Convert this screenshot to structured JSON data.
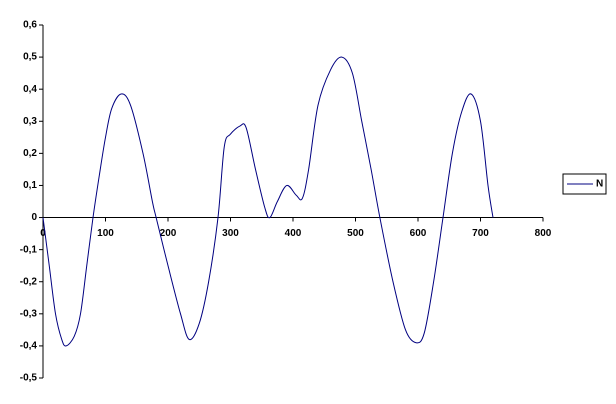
{
  "chart_data": {
    "type": "line",
    "x": [
      0,
      10,
      20,
      30,
      37,
      50,
      60,
      70,
      80,
      90,
      100,
      110,
      125,
      140,
      160,
      175,
      181,
      200,
      220,
      234,
      250,
      265,
      280,
      290,
      300,
      315,
      325,
      340,
      355,
      363,
      375,
      390,
      405,
      415,
      425,
      440,
      460,
      478,
      495,
      510,
      525,
      539,
      560,
      580,
      597,
      610,
      625,
      640,
      655,
      670,
      685,
      700,
      712,
      720
    ],
    "series": [
      {
        "name": "N",
        "color": "#000080",
        "values": [
          0,
          -0.15,
          -0.3,
          -0.38,
          -0.4,
          -0.37,
          -0.3,
          -0.15,
          0,
          0.13,
          0.25,
          0.34,
          0.385,
          0.35,
          0.2,
          0.05,
          0,
          -0.15,
          -0.3,
          -0.38,
          -0.33,
          -0.2,
          0,
          0.22,
          0.26,
          0.285,
          0.28,
          0.15,
          0.03,
          0,
          0.05,
          0.1,
          0.07,
          0.06,
          0.15,
          0.35,
          0.46,
          0.5,
          0.45,
          0.3,
          0.15,
          0,
          -0.2,
          -0.35,
          -0.39,
          -0.36,
          -0.2,
          0,
          0.2,
          0.33,
          0.385,
          0.3,
          0.1,
          0
        ]
      }
    ],
    "xlim": [
      0,
      800
    ],
    "xticks": [
      0,
      100,
      200,
      300,
      400,
      500,
      600,
      700,
      800
    ],
    "ylim": [
      -0.5,
      0.6
    ],
    "yticks": [
      {
        "value": -0.5,
        "label": "-0,5"
      },
      {
        "value": -0.4,
        "label": "-0,4"
      },
      {
        "value": -0.3,
        "label": "-0,3"
      },
      {
        "value": -0.2,
        "label": "-0,2"
      },
      {
        "value": -0.1,
        "label": "-0,1"
      },
      0,
      {
        "value": 0.1,
        "label": "0,1"
      },
      {
        "value": 0.2,
        "label": "0,2"
      },
      {
        "value": 0.3,
        "label": "0,3"
      },
      {
        "value": 0.4,
        "label": "0,4"
      },
      {
        "value": 0.5,
        "label": "0,5"
      },
      {
        "value": 0.6,
        "label": "0,6"
      }
    ],
    "grid": false,
    "legend": "right"
  }
}
